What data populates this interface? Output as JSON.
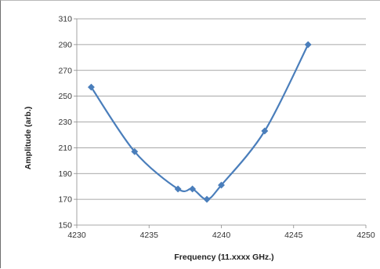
{
  "chart_data": {
    "type": "line",
    "title": "",
    "xlabel": "Frequency (11.xxxx GHz.)",
    "ylabel": "Amplitude (arb.)",
    "xlim": [
      4230,
      4250
    ],
    "ylim": [
      150,
      310
    ],
    "xticks": [
      4230,
      4235,
      4240,
      4245,
      4250
    ],
    "yticks": [
      150,
      170,
      190,
      210,
      230,
      250,
      270,
      290,
      310
    ],
    "grid": "horizontal",
    "legend": "none",
    "series": [
      {
        "x": [
          4231,
          4234,
          4237,
          4238,
          4239,
          4240,
          4243,
          4246
        ],
        "y": [
          257,
          207,
          178,
          178,
          170,
          181,
          223,
          290
        ],
        "color": "#4a7ebb",
        "marker": "diamond",
        "smooth": true
      }
    ]
  }
}
